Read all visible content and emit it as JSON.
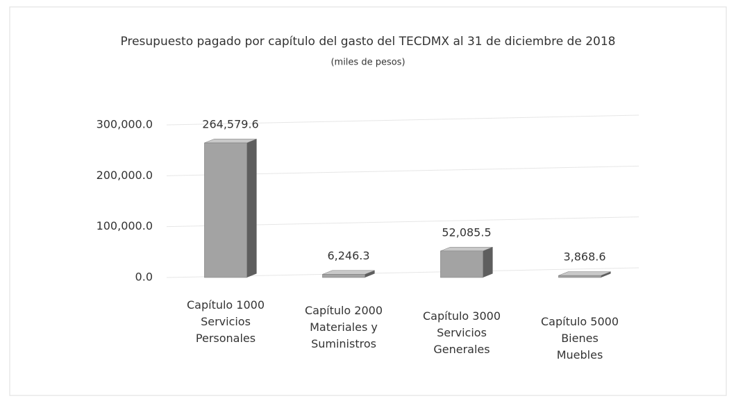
{
  "chart_data": {
    "type": "bar",
    "title": "Presupuesto pagado por capítulo del gasto del TECDMX al 31 de diciembre de 2018",
    "subtitle": "(miles de pesos)",
    "categories": [
      "Capítulo 1000\nServicios\nPersonales",
      "Capítulo 2000\nMateriales y\nSuministros",
      "Capítulo 3000\nServicios\nGenerales",
      "Capítulo 5000\nBienes\nMuebles"
    ],
    "values": [
      264579.6,
      6246.3,
      52085.5,
      3868.6
    ],
    "value_labels": [
      "264,579.6",
      "6,246.3",
      "52,085.5",
      "3,868.6"
    ],
    "color": "#a3a3a3",
    "ylim": [
      0,
      300000
    ],
    "yticks": [
      {
        "value": 0,
        "label": "0.0"
      },
      {
        "value": 100000,
        "label": "100,000.0"
      },
      {
        "value": 200000,
        "label": "200,000.0"
      },
      {
        "value": 300000,
        "label": "300,000.0"
      }
    ],
    "grid": true
  }
}
